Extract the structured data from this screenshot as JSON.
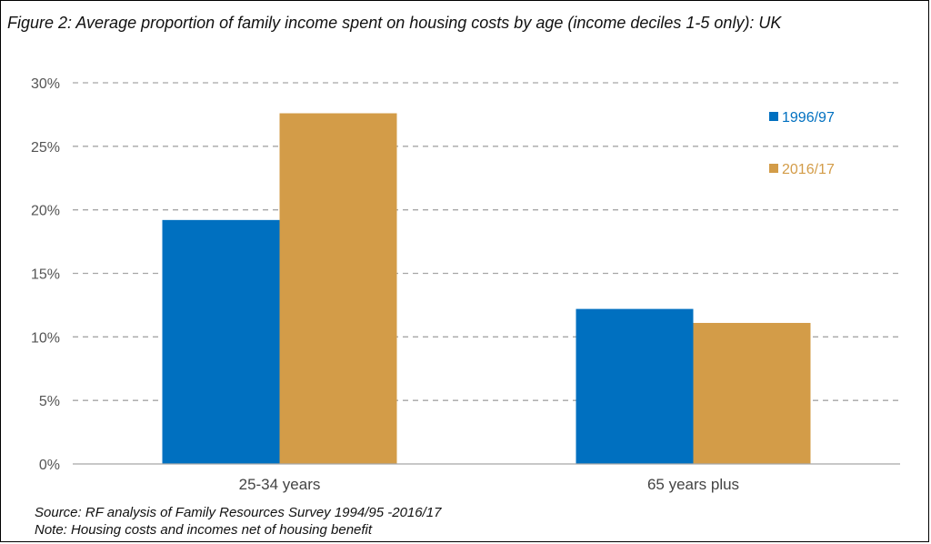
{
  "title": "Figure 2: Average proportion of family income spent on housing costs by age (income deciles 1-5 only): UK",
  "notes": {
    "source": "Source: RF analysis of Family Resources Survey 1994/95 -2016/17",
    "note": "Note: Housing costs and incomes net of housing benefit"
  },
  "chart_data": {
    "type": "bar",
    "title": "Figure 2: Average proportion of family income spent on housing costs by age (income deciles 1-5 only): UK",
    "xlabel": "",
    "ylabel": "",
    "categories": [
      "25-34 years",
      "65 years plus"
    ],
    "series": [
      {
        "name": "1996/97",
        "color": "#0070c0",
        "values": [
          19.2,
          12.2
        ]
      },
      {
        "name": "2016/17",
        "color": "#d39c48",
        "values": [
          27.6,
          11.1
        ]
      }
    ],
    "ylim": [
      0,
      30
    ],
    "yticks": [
      0,
      5,
      10,
      15,
      20,
      25,
      30
    ],
    "ytick_format": "percent",
    "grid": true,
    "grid_style": "dashed",
    "legend_position": "top-right"
  }
}
